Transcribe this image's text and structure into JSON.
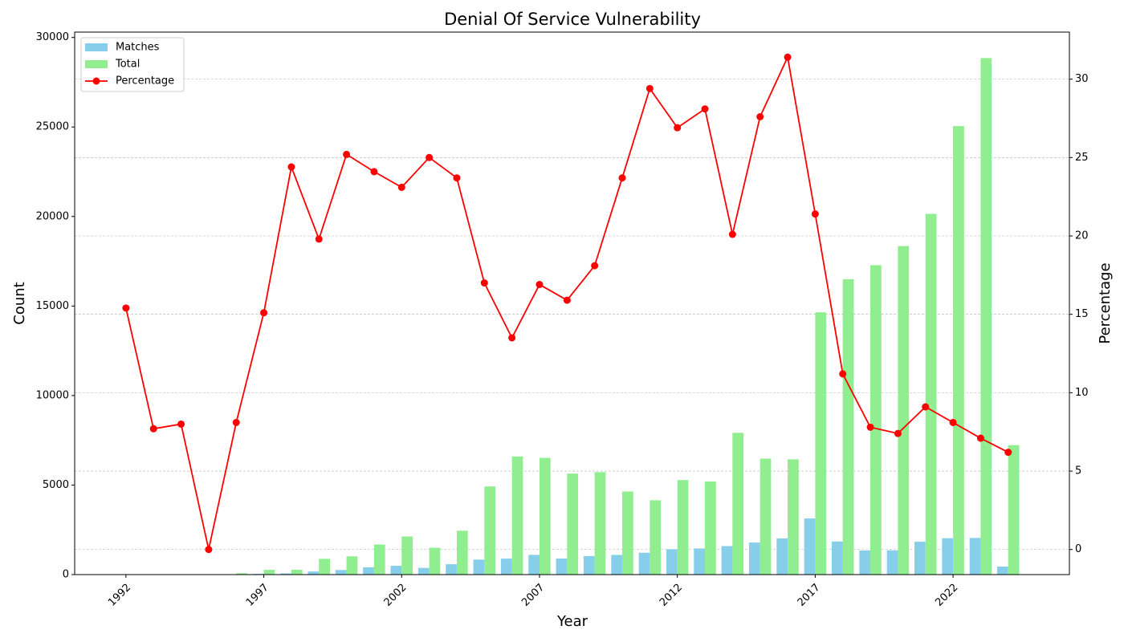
{
  "chart_data": {
    "type": "bar-line",
    "title": "Denial Of Service Vulnerability",
    "x_label": "Year",
    "y_label": "Count",
    "y2_label": "Percentage",
    "x": [
      1992,
      1993,
      1994,
      1995,
      1996,
      1997,
      1998,
      1999,
      2000,
      2001,
      2002,
      2003,
      2004,
      2005,
      2006,
      2007,
      2008,
      2009,
      2010,
      2011,
      2012,
      2013,
      2014,
      2015,
      2016,
      2017,
      2018,
      2019,
      2020,
      2021,
      2022,
      2023,
      2024
    ],
    "series": [
      {
        "name": "Matches",
        "color": "#87ceeb",
        "type": "bar",
        "values": [
          2,
          1,
          2,
          0,
          6,
          40,
          66,
          174,
          257,
          405,
          492,
          375,
          580,
          836,
          891,
          1102,
          897,
          1035,
          1100,
          1220,
          1420,
          1461,
          1592,
          1788,
          2022,
          3135,
          1848,
          1348,
          1358,
          1834,
          2029,
          2048,
          448
        ]
      },
      {
        "name": "Total",
        "color": "#90ee90",
        "type": "bar",
        "values": [
          13,
          13,
          25,
          25,
          74,
          265,
          270,
          880,
          1020,
          1680,
          2130,
          1500,
          2450,
          4920,
          6600,
          6520,
          5640,
          5720,
          4640,
          4150,
          5280,
          5200,
          7920,
          6480,
          6440,
          14650,
          16500,
          17280,
          18350,
          20150,
          25050,
          28850,
          7230
        ]
      },
      {
        "name": "Percentage",
        "color": "#ff0000",
        "type": "line",
        "axis": "y2",
        "values": [
          15.4,
          7.7,
          8.0,
          0,
          8.1,
          15.1,
          24.4,
          19.8,
          25.2,
          24.1,
          23.1,
          25.0,
          23.7,
          17.0,
          13.5,
          16.9,
          15.9,
          18.1,
          23.7,
          29.4,
          26.9,
          28.1,
          20.1,
          27.6,
          31.4,
          21.4,
          11.2,
          7.8,
          7.4,
          9.1,
          8.1,
          7.1,
          6.2
        ]
      }
    ],
    "xlim": [
      1990.14,
      2026.22
    ],
    "xticks": [
      1992,
      1997,
      2002,
      2007,
      2012,
      2017,
      2022
    ],
    "ylim": [
      0,
      30300
    ],
    "yticks": [
      0,
      5000,
      10000,
      15000,
      20000,
      25000,
      30000
    ],
    "y2lim": [
      -1.6,
      33.0
    ],
    "y2ticks": [
      0,
      5,
      10,
      15,
      20,
      25,
      30
    ],
    "grid": "y2",
    "legend": "upper-left"
  }
}
